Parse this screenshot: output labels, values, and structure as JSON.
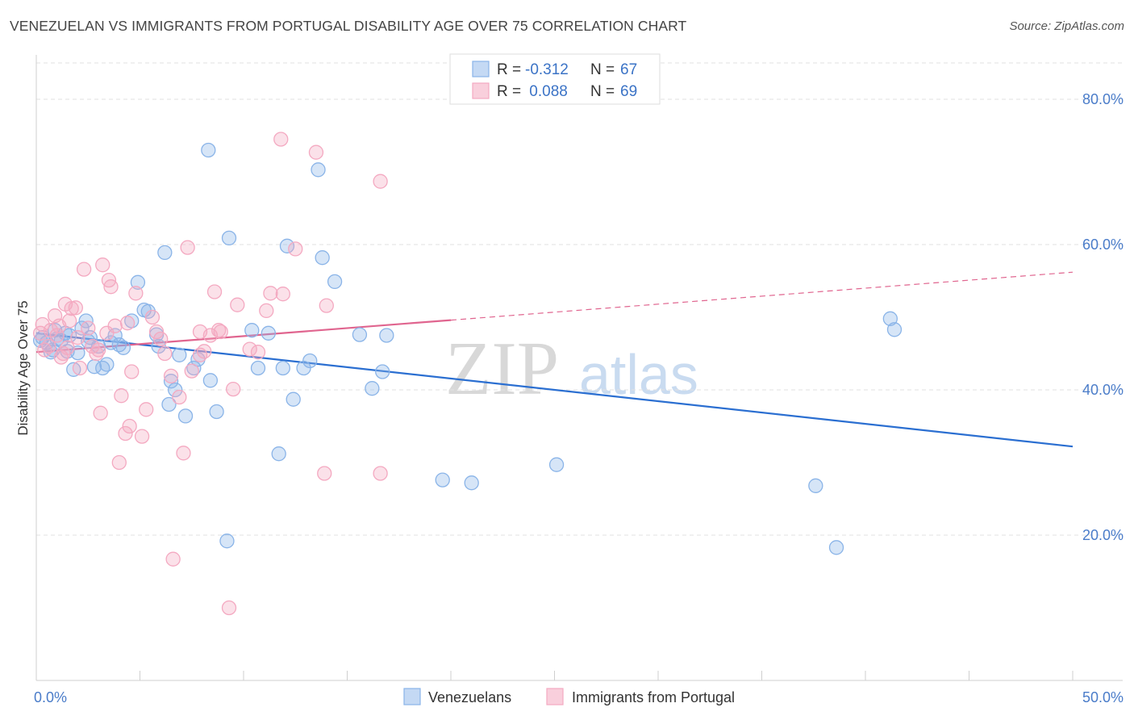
{
  "title": "VENEZUELAN VS IMMIGRANTS FROM PORTUGAL DISABILITY AGE OVER 75 CORRELATION CHART",
  "source": "Source: ZipAtlas.com",
  "watermark": {
    "zip": "ZIP",
    "atlas": "atlas"
  },
  "chart_data": {
    "type": "scatter",
    "ylabel": "Disability Age Over 75",
    "xlim": [
      0,
      50
    ],
    "ylim": [
      0,
      85
    ],
    "x_ticks": [
      "0.0%",
      "50.0%"
    ],
    "y_ticks": [
      {
        "value": 20,
        "label": "20.0%"
      },
      {
        "value": 40,
        "label": "40.0%"
      },
      {
        "value": 60,
        "label": "60.0%"
      },
      {
        "value": 80,
        "label": "80.0%"
      }
    ],
    "grid": true,
    "legend_top": [
      {
        "r_label": "R = ",
        "r_value": "-0.312",
        "n_label": "N = ",
        "n_value": "67"
      },
      {
        "r_label": "R = ",
        "r_value": " 0.088",
        "n_label": "N = ",
        "n_value": "69"
      }
    ],
    "series": [
      {
        "name": "Venezuelans",
        "color": "#8ab4e8",
        "line_color": "#2b6fd1",
        "trend": {
          "x0": 0,
          "y0": 47.8,
          "x1": 50,
          "y1": 32.2,
          "dashed_from": null
        },
        "points": [
          [
            0.2,
            46.8
          ],
          [
            0.5,
            46.5
          ],
          [
            0.7,
            45.2
          ],
          [
            0.8,
            45.5
          ],
          [
            0.9,
            48.2
          ],
          [
            1.0,
            47.0
          ],
          [
            1.2,
            46.8
          ],
          [
            1.4,
            47.8
          ],
          [
            1.6,
            47.5
          ],
          [
            1.8,
            42.8
          ],
          [
            2.0,
            45.1
          ],
          [
            2.2,
            48.5
          ],
          [
            2.4,
            49.5
          ],
          [
            2.6,
            47.2
          ],
          [
            2.8,
            43.2
          ],
          [
            3.0,
            46.0
          ],
          [
            3.2,
            43.0
          ],
          [
            3.4,
            43.5
          ],
          [
            3.6,
            46.5
          ],
          [
            3.8,
            47.5
          ],
          [
            4.0,
            46.2
          ],
          [
            4.2,
            45.8
          ],
          [
            4.6,
            49.5
          ],
          [
            4.9,
            54.8
          ],
          [
            5.2,
            51.0
          ],
          [
            5.4,
            50.8
          ],
          [
            5.8,
            47.6
          ],
          [
            5.9,
            46.0
          ],
          [
            6.2,
            58.9
          ],
          [
            6.4,
            38.0
          ],
          [
            6.5,
            41.2
          ],
          [
            6.7,
            40.0
          ],
          [
            6.9,
            44.8
          ],
          [
            7.2,
            36.4
          ],
          [
            7.6,
            43.0
          ],
          [
            7.8,
            44.2
          ],
          [
            8.3,
            73.0
          ],
          [
            8.4,
            41.3
          ],
          [
            8.7,
            37.0
          ],
          [
            9.2,
            19.2
          ],
          [
            9.3,
            60.9
          ],
          [
            10.4,
            48.2
          ],
          [
            10.7,
            43.0
          ],
          [
            11.2,
            47.8
          ],
          [
            11.7,
            31.2
          ],
          [
            11.9,
            43.0
          ],
          [
            12.1,
            59.8
          ],
          [
            12.4,
            38.7
          ],
          [
            12.9,
            43.0
          ],
          [
            13.2,
            44.0
          ],
          [
            13.6,
            70.3
          ],
          [
            13.8,
            58.2
          ],
          [
            14.4,
            54.9
          ],
          [
            15.6,
            47.6
          ],
          [
            16.2,
            40.2
          ],
          [
            16.7,
            42.5
          ],
          [
            16.9,
            47.5
          ],
          [
            19.6,
            27.6
          ],
          [
            21.0,
            27.2
          ],
          [
            25.1,
            29.7
          ],
          [
            37.6,
            26.8
          ],
          [
            38.6,
            18.3
          ],
          [
            41.2,
            49.8
          ],
          [
            41.4,
            48.3
          ],
          [
            0.3,
            47.2
          ],
          [
            1.5,
            45.3
          ],
          [
            2.5,
            46.7
          ]
        ]
      },
      {
        "name": "Immigrants from Portugal",
        "color": "#f4a9c1",
        "line_color": "#e0658f",
        "trend": {
          "x0": 0,
          "y0": 45.2,
          "x1": 50,
          "y1": 56.2,
          "dashed_from": 20.0
        },
        "points": [
          [
            0.2,
            47.8
          ],
          [
            0.4,
            45.5
          ],
          [
            0.6,
            46.0
          ],
          [
            0.7,
            48.2
          ],
          [
            0.9,
            50.2
          ],
          [
            1.0,
            47.5
          ],
          [
            1.1,
            48.8
          ],
          [
            1.2,
            44.5
          ],
          [
            1.3,
            45.0
          ],
          [
            1.4,
            51.8
          ],
          [
            1.6,
            49.5
          ],
          [
            1.7,
            51.2
          ],
          [
            1.9,
            51.3
          ],
          [
            2.1,
            43.0
          ],
          [
            2.3,
            56.6
          ],
          [
            2.5,
            48.5
          ],
          [
            2.7,
            46.0
          ],
          [
            2.9,
            45.0
          ],
          [
            3.1,
            36.8
          ],
          [
            3.2,
            57.2
          ],
          [
            3.4,
            47.8
          ],
          [
            3.5,
            55.1
          ],
          [
            3.6,
            54.2
          ],
          [
            3.8,
            48.8
          ],
          [
            4.0,
            30.0
          ],
          [
            4.1,
            39.2
          ],
          [
            4.3,
            34.0
          ],
          [
            4.4,
            49.2
          ],
          [
            4.5,
            35.0
          ],
          [
            4.6,
            42.5
          ],
          [
            4.8,
            53.3
          ],
          [
            5.1,
            33.6
          ],
          [
            5.3,
            37.3
          ],
          [
            5.6,
            50.0
          ],
          [
            6.0,
            47.0
          ],
          [
            6.2,
            45.0
          ],
          [
            6.5,
            41.9
          ],
          [
            6.6,
            16.7
          ],
          [
            6.9,
            39.0
          ],
          [
            7.1,
            31.3
          ],
          [
            7.3,
            59.6
          ],
          [
            7.5,
            42.6
          ],
          [
            7.9,
            48.0
          ],
          [
            8.1,
            45.3
          ],
          [
            8.4,
            47.5
          ],
          [
            8.6,
            53.5
          ],
          [
            8.8,
            48.2
          ],
          [
            9.3,
            10.0
          ],
          [
            9.5,
            40.1
          ],
          [
            9.7,
            51.7
          ],
          [
            10.7,
            45.2
          ],
          [
            11.1,
            50.9
          ],
          [
            11.3,
            53.3
          ],
          [
            11.8,
            74.5
          ],
          [
            11.9,
            53.2
          ],
          [
            12.5,
            59.4
          ],
          [
            13.5,
            72.7
          ],
          [
            14.0,
            51.6
          ],
          [
            13.9,
            28.5
          ],
          [
            16.6,
            68.7
          ],
          [
            16.6,
            28.5
          ],
          [
            0.3,
            49.0
          ],
          [
            1.5,
            45.8
          ],
          [
            2.0,
            47.2
          ],
          [
            3.0,
            45.5
          ],
          [
            5.8,
            48.0
          ],
          [
            7.9,
            44.8
          ],
          [
            8.9,
            48.0
          ],
          [
            10.3,
            45.6
          ]
        ]
      }
    ]
  }
}
